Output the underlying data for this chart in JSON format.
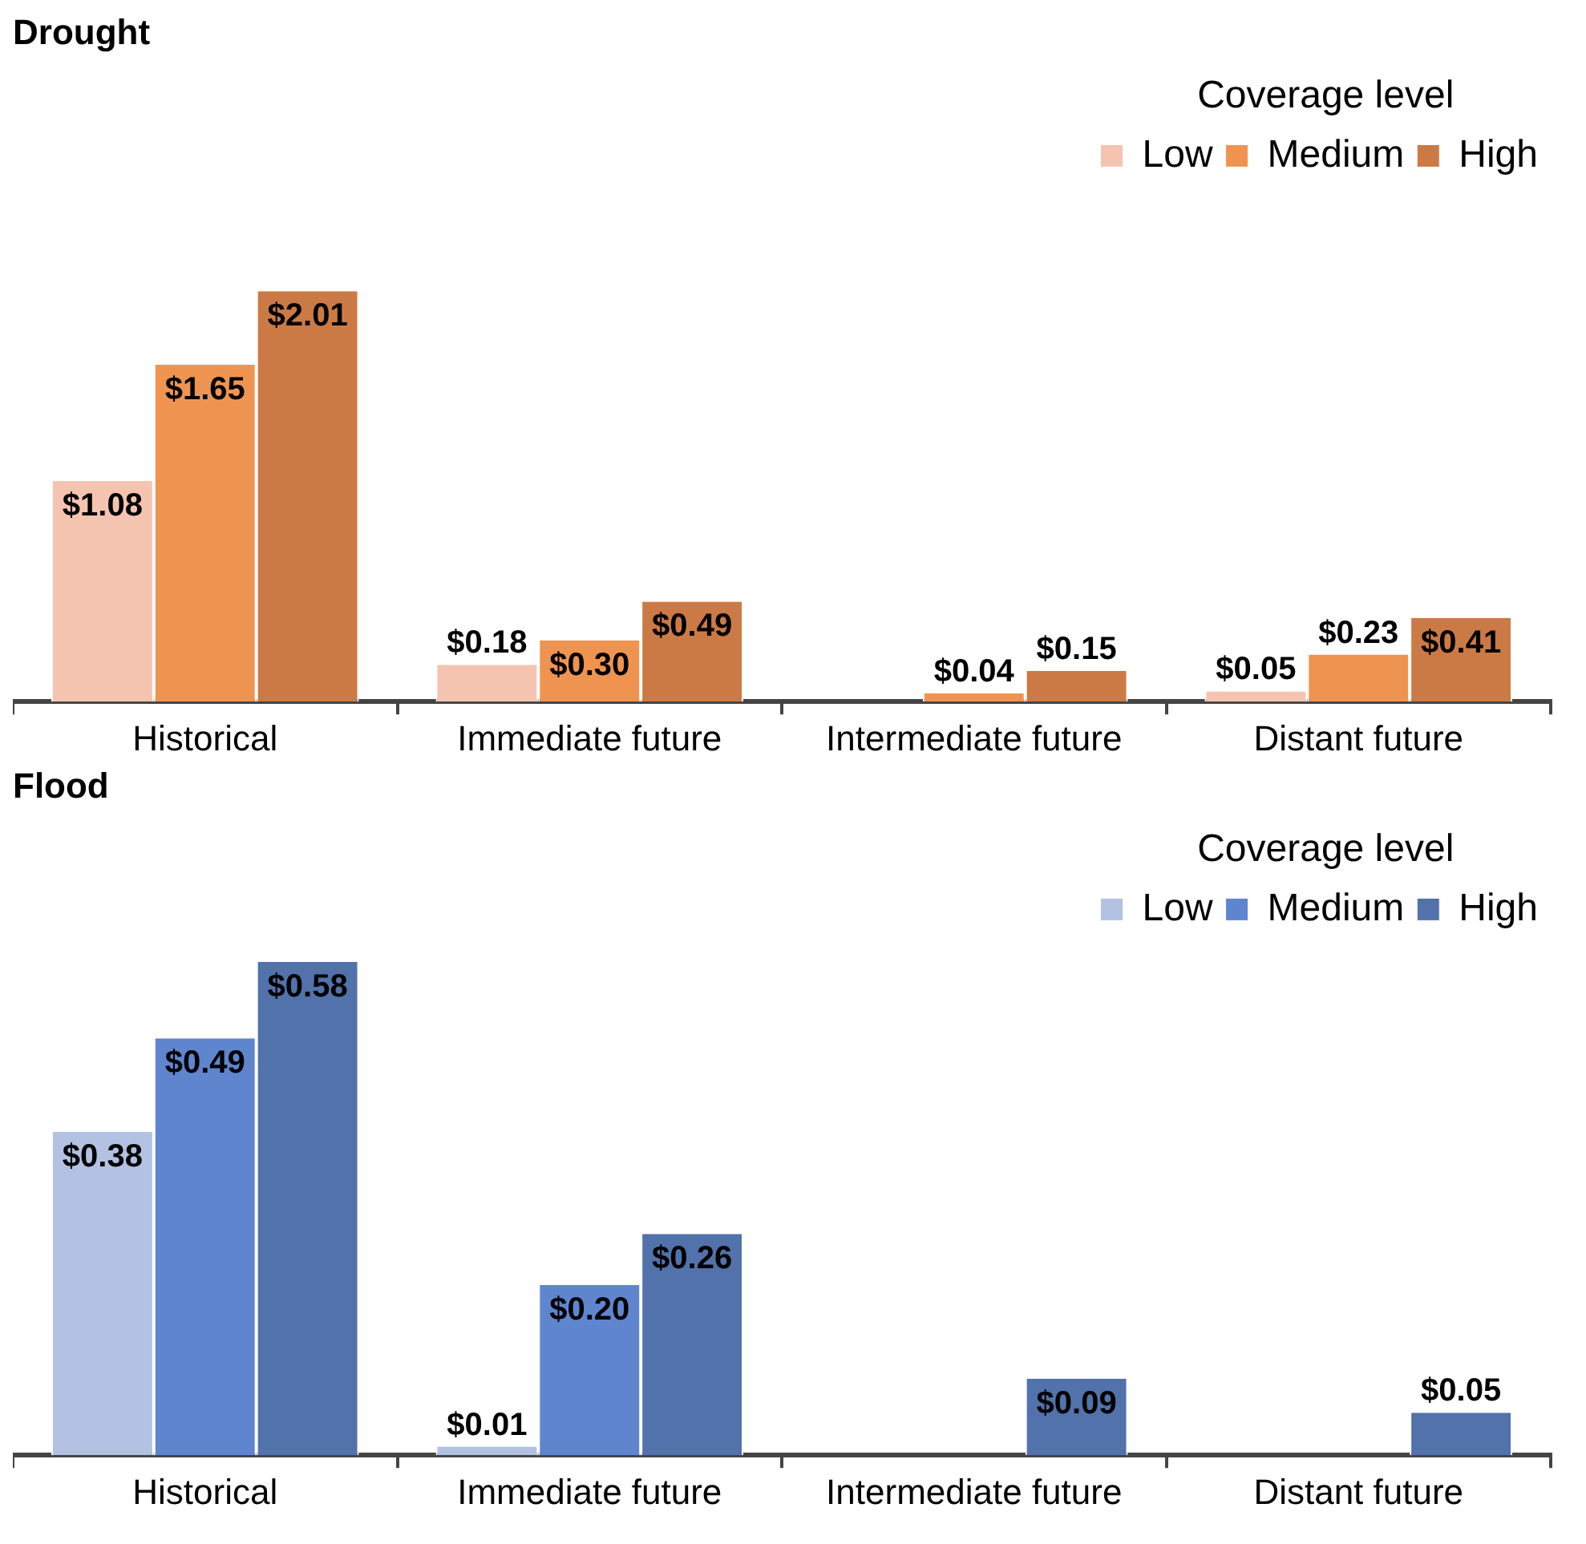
{
  "chart_data": [
    {
      "type": "bar",
      "title": "Drought",
      "legend_title": "Coverage level",
      "legend": "top right",
      "grid": false,
      "tick_labels": "x",
      "categories": [
        "Historical",
        "Immediate future",
        "Intermediate future",
        "Distant future"
      ],
      "series": [
        {
          "name": "Low",
          "color": "#f5c4b0",
          "values": [
            1.08,
            0.18,
            null,
            0.05
          ],
          "value_labels": [
            "$1.08",
            "$0.18",
            null,
            "$0.05"
          ]
        },
        {
          "name": "Medium",
          "color": "#ef9450",
          "values": [
            1.65,
            0.3,
            0.04,
            0.23
          ],
          "value_labels": [
            "$1.65",
            "$0.30",
            "$0.04",
            "$0.23"
          ]
        },
        {
          "name": "High",
          "color": "#cc7a45",
          "values": [
            2.01,
            0.49,
            0.15,
            0.41
          ],
          "value_labels": [
            "$2.01",
            "$0.49",
            "$0.15",
            "$0.41"
          ]
        }
      ]
    },
    {
      "type": "bar",
      "title": "Flood",
      "legend_title": "Coverage level",
      "legend": "top right",
      "grid": false,
      "tick_labels": "x",
      "categories": [
        "Historical",
        "Immediate future",
        "Intermediate future",
        "Distant future"
      ],
      "series": [
        {
          "name": "Low",
          "color": "#b3c1e2",
          "values": [
            0.38,
            0.01,
            null,
            null
          ],
          "value_labels": [
            "$0.38",
            "$0.01",
            null,
            null
          ]
        },
        {
          "name": "Medium",
          "color": "#5f85cf",
          "values": [
            0.49,
            0.2,
            null,
            null
          ],
          "value_labels": [
            "$0.49",
            "$0.20",
            null,
            null
          ]
        },
        {
          "name": "High",
          "color": "#5172aa",
          "values": [
            0.58,
            0.26,
            0.09,
            0.05
          ],
          "value_labels": [
            "$0.58",
            "$0.26",
            "$0.09",
            "$0.05"
          ]
        }
      ]
    }
  ]
}
